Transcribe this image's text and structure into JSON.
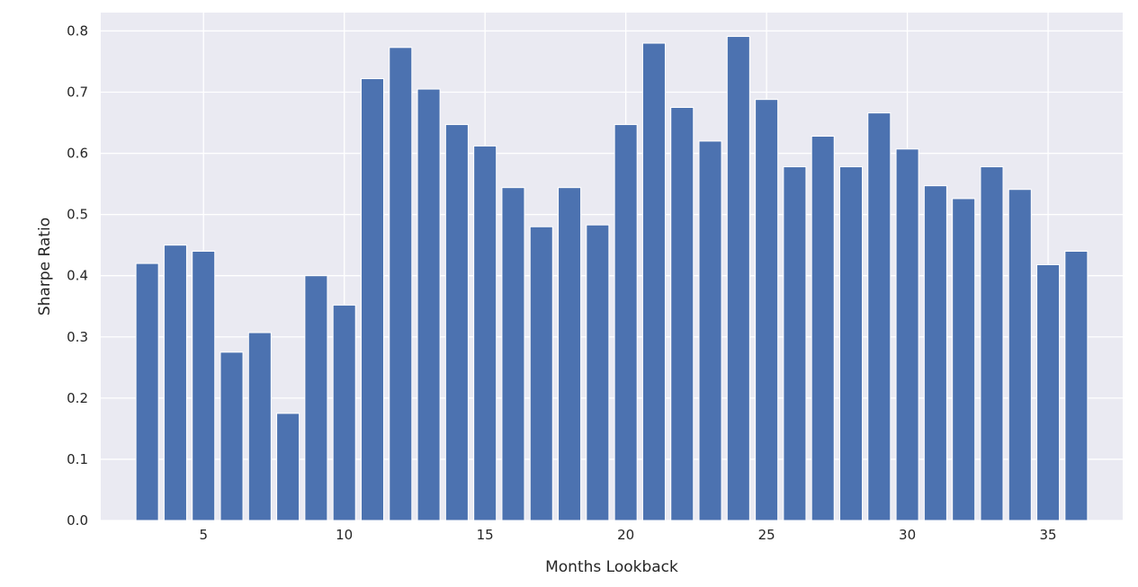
{
  "chart_data": {
    "type": "bar",
    "title": "",
    "xlabel": "Months Lookback",
    "ylabel": "Sharpe Ratio",
    "x": [
      3,
      4,
      5,
      6,
      7,
      8,
      9,
      10,
      11,
      12,
      13,
      14,
      15,
      16,
      17,
      18,
      19,
      20,
      21,
      22,
      23,
      24,
      25,
      26,
      27,
      28,
      29,
      30,
      31,
      32,
      33,
      34,
      35,
      36
    ],
    "values": [
      0.42,
      0.45,
      0.44,
      0.275,
      0.307,
      0.175,
      0.4,
      0.352,
      0.722,
      0.773,
      0.705,
      0.647,
      0.612,
      0.544,
      0.48,
      0.544,
      0.483,
      0.647,
      0.78,
      0.675,
      0.62,
      0.791,
      0.688,
      0.578,
      0.628,
      0.578,
      0.666,
      0.607,
      0.547,
      0.526,
      0.578,
      0.541,
      0.418,
      0.44
    ],
    "xticks": [
      5,
      10,
      15,
      20,
      25,
      30,
      35
    ],
    "yticks": [
      0.0,
      0.1,
      0.2,
      0.3,
      0.4,
      0.5,
      0.6,
      0.7,
      0.8
    ],
    "xlim": [
      1.35,
      37.65
    ],
    "ylim": [
      0,
      0.83
    ],
    "grid": true,
    "colors": {
      "bar": "#4c72b0",
      "background": "#eaeaf2",
      "grid": "#ffffff"
    }
  }
}
